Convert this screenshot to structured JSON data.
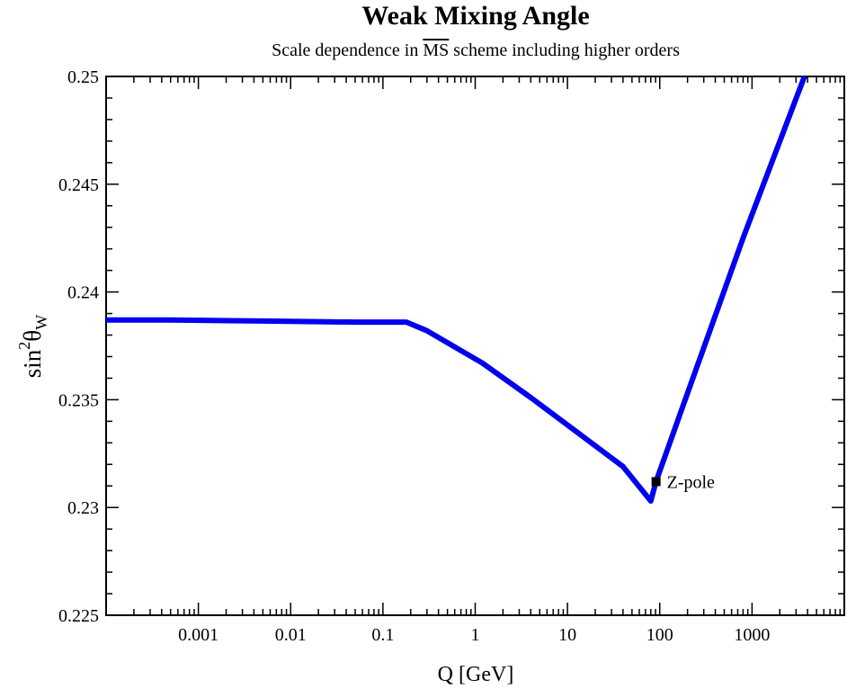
{
  "chart_data": {
    "type": "line",
    "title": "Weak Mixing Angle",
    "subtitle": {
      "before": "Scale dependence in ",
      "overlined": "MS",
      "after": " scheme including higher orders"
    },
    "xlabel": "Q [GeV]",
    "ylabel": {
      "base": "sin",
      "sup": "2",
      "theta": "θ",
      "sub": "W"
    },
    "x_scale": "log",
    "xlim": [
      0.0001,
      10000
    ],
    "ylim": [
      0.225,
      0.25
    ],
    "x_ticks": [
      {
        "value": 0.001,
        "label": "0.001"
      },
      {
        "value": 0.01,
        "label": "0.01"
      },
      {
        "value": 0.1,
        "label": "0.1"
      },
      {
        "value": 1,
        "label": "1"
      },
      {
        "value": 10,
        "label": "10"
      },
      {
        "value": 100,
        "label": "100"
      },
      {
        "value": 1000,
        "label": "1000"
      }
    ],
    "y_ticks": [
      {
        "value": 0.225,
        "label": "0.225"
      },
      {
        "value": 0.23,
        "label": "0.23"
      },
      {
        "value": 0.235,
        "label": "0.235"
      },
      {
        "value": 0.24,
        "label": "0.24"
      },
      {
        "value": 0.245,
        "label": "0.245"
      },
      {
        "value": 0.25,
        "label": "0.25"
      }
    ],
    "y_minor_step": 0.001,
    "series": [
      {
        "name": "sin2thetaW(Q)",
        "color": "#0000ee",
        "x": [
          0.0001,
          0.0005,
          0.005,
          0.05,
          0.18,
          0.3,
          1.2,
          4.0,
          40,
          80,
          91.19,
          200,
          800,
          3700
        ],
        "y": [
          0.2387,
          0.2387,
          0.23865,
          0.2386,
          0.2386,
          0.2382,
          0.2367,
          0.2351,
          0.2319,
          0.2303,
          0.2312,
          0.2353,
          0.2425,
          0.25
        ]
      }
    ],
    "annotations": [
      {
        "x": 91.19,
        "y": 0.2312,
        "label": "Z-pole",
        "marker": "square"
      }
    ]
  }
}
